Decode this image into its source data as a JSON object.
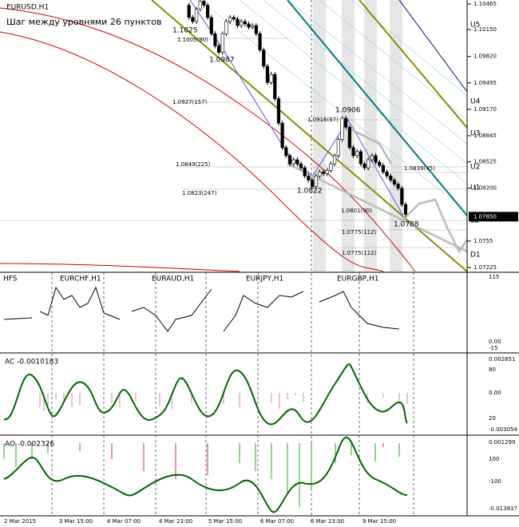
{
  "main": {
    "symbol": "EURUSD,H1",
    "note": "Шаг между уровнями 26 пунктов",
    "ylim": [
      1.07176,
      1.10514
    ],
    "yticks": [
      1.10465,
      {
        "value": 1.1015,
        "label": "1.10150"
      },
      {
        "value": 1.0982,
        "label": "1.09820"
      },
      1.09495,
      {
        "value": 1.0917,
        "label": "1.09170"
      },
      1.08845,
      1.08525,
      {
        "value": 1.082,
        "label": "1.08200"
      },
      1.0755,
      1.07225
    ],
    "current_price": {
      "value": 1.0785,
      "label": "1.07850"
    },
    "levels": [
      "U5",
      "U4",
      "U3",
      "U2",
      "U1",
      "LB",
      "D1"
    ],
    "price_labels": [
      "1.1025",
      "1.0987",
      "1.0906",
      "1.0822",
      "1.0788"
    ],
    "level_notes": [
      "1.1005(90)",
      "1.0927(157)",
      "1.0916(67)",
      "1.0849(225)",
      "1.0839(45)",
      "1.0823(247)",
      "1.0801(90)",
      "1.0775(112)",
      "1.0775(112)"
    ],
    "close": [
      1.1045,
      1.103,
      1.1025,
      1.104,
      1.105,
      1.1045,
      1.103,
      1.101,
      1.0995,
      1.0987,
      1.101,
      1.1025,
      1.103,
      1.1028,
      1.102,
      1.1025,
      1.1022,
      1.1018,
      1.102,
      1.101,
      1.099,
      1.097,
      1.095,
      1.096,
      1.093,
      1.09,
      1.087,
      1.086,
      1.085,
      1.0855,
      1.085,
      1.0845,
      1.0835,
      1.083,
      1.0822,
      1.0835,
      1.084,
      1.0838,
      1.0842,
      1.085,
      1.086,
      1.088,
      1.0906,
      1.0895,
      1.087,
      1.086,
      1.0865,
      1.085,
      1.0845,
      1.0855,
      1.086,
      1.0852,
      1.0848,
      1.084,
      1.0835,
      1.083,
      1.0825,
      1.082,
      1.08,
      1.0788
    ]
  },
  "hfs": {
    "title": "HFS",
    "pairs": [
      "EURCHF,H1",
      "EURAUD,H1",
      "EURJPY,H1",
      "EURGBP,H1"
    ],
    "axis": [
      "115",
      "0.00",
      "-15"
    ]
  },
  "ac": {
    "title": "AC -0.0010183",
    "axis": [
      "0.002851",
      "80",
      "0.00",
      "20",
      "-0.003054"
    ]
  },
  "ao": {
    "title": "AO -0.002326",
    "axis": [
      "0.001299",
      "100",
      "-100",
      "-0.013837"
    ]
  },
  "time_axis": [
    "2 Mar 2015",
    "3 Mar 15:00",
    "4 Mar 07:00",
    "4 Mar 23:00",
    "5 Mar 15:00",
    "6 Mar 07:00",
    "6 Mar 23:00",
    "9 Mar 15:00"
  ]
}
